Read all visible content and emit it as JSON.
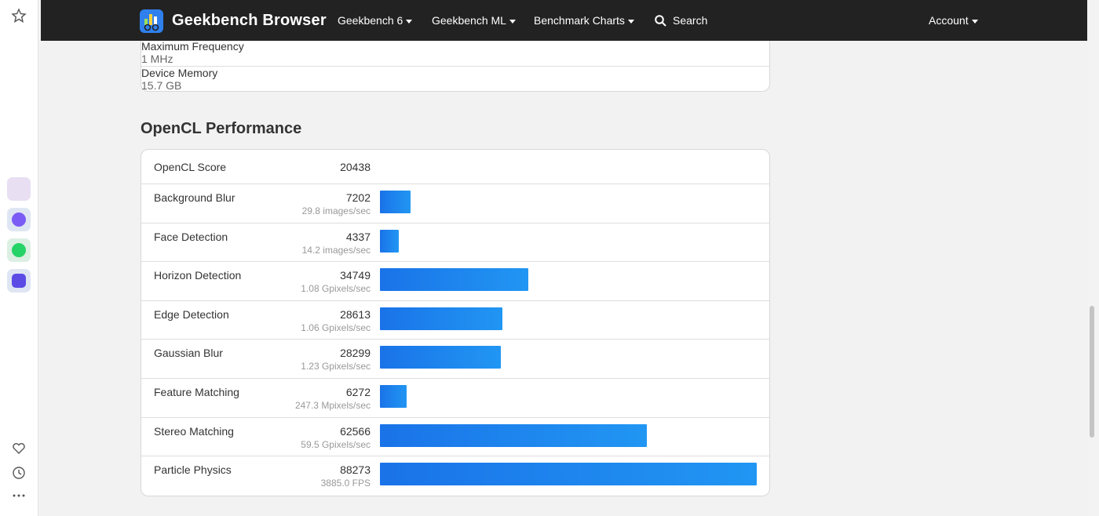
{
  "nav": {
    "brand": "Geekbench Browser",
    "items": [
      "Geekbench 6",
      "Geekbench ML",
      "Benchmark Charts"
    ],
    "search": "Search",
    "account": "Account"
  },
  "system_info": {
    "rows": [
      [
        "Maximum Frequency",
        "1 MHz"
      ],
      [
        "Device Memory",
        "15.7 GB"
      ]
    ]
  },
  "opencl": {
    "title": "OpenCL Performance",
    "score_label": "OpenCL Score",
    "score": 20438,
    "workloads": [
      {
        "name": "Background Blur",
        "score": 7202,
        "throughput": "29.8 images/sec"
      },
      {
        "name": "Face Detection",
        "score": 4337,
        "throughput": "14.2 images/sec"
      },
      {
        "name": "Horizon Detection",
        "score": 34749,
        "throughput": "1.08 Gpixels/sec"
      },
      {
        "name": "Edge Detection",
        "score": 28613,
        "throughput": "1.06 Gpixels/sec"
      },
      {
        "name": "Gaussian Blur",
        "score": 28299,
        "throughput": "1.23 Gpixels/sec"
      },
      {
        "name": "Feature Matching",
        "score": 6272,
        "throughput": "247.3 Mpixels/sec"
      },
      {
        "name": "Stereo Matching",
        "score": 62566,
        "throughput": "59.5 Gpixels/sec"
      },
      {
        "name": "Particle Physics",
        "score": 88273,
        "throughput": "3885.0 FPS"
      }
    ]
  }
}
